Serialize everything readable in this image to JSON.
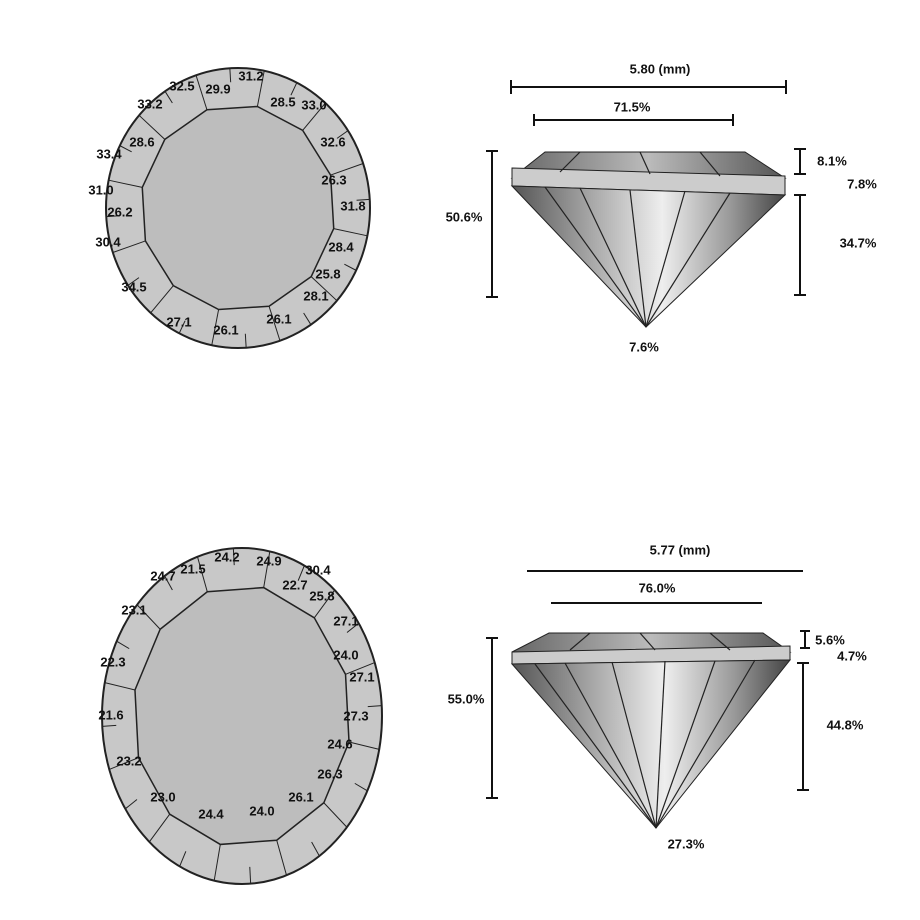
{
  "diagrams": [
    {
      "top_view": {
        "facets": [
          "32.5",
          "29.9",
          "31.2",
          "28.5",
          "33.0",
          "33.2",
          "28.6",
          "33.4",
          "32.6",
          "31.0",
          "26.2",
          "26.3",
          "31.8",
          "30.4",
          "28.4",
          "34.5",
          "25.8",
          "28.1",
          "27.1",
          "26.1",
          "26.1"
        ]
      },
      "profile": {
        "diameter": "5.80 (mm)",
        "table": "71.5%",
        "crown_height": "8.1%",
        "girdle": "7.8%",
        "pavilion_depth": "34.7%",
        "total_depth": "50.6%",
        "culet": "7.6%"
      }
    },
    {
      "top_view": {
        "facets": [
          "24.7",
          "21.5",
          "24.2",
          "24.9",
          "30.4",
          "22.7",
          "25.8",
          "23.1",
          "27.1",
          "24.0",
          "22.3",
          "27.1",
          "21.6",
          "27.3",
          "24.6",
          "23.2",
          "26.3",
          "23.0",
          "26.1",
          "24.4",
          "24.0"
        ]
      },
      "profile": {
        "diameter": "5.77 (mm)",
        "table": "76.0%",
        "crown_height": "5.6%",
        "girdle": "4.7%",
        "pavilion_depth": "44.8%",
        "total_depth": "55.0%",
        "culet": "27.3%"
      }
    }
  ]
}
